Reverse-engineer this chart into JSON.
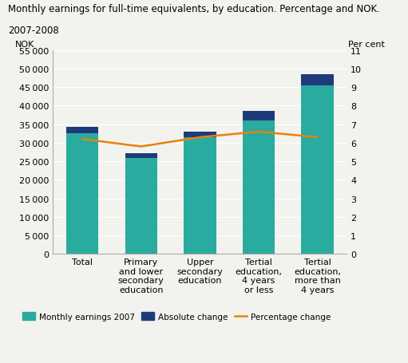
{
  "title_line1": "Monthly earnings for full-time equivalents, by education. Percentage and NOK.",
  "title_line2": "2007-2008",
  "categories": [
    "Total",
    "Primary\nand lower\nsecondary\neducation",
    "Upper\nsecondary\neducation",
    "Tertial\neducation,\n4 years\nor less",
    "Tertial\neducation,\nmore than\n4 years"
  ],
  "earnings_2007": [
    32500,
    25800,
    31500,
    36000,
    45500
  ],
  "absolute_change": [
    1700,
    1300,
    1500,
    2500,
    3000
  ],
  "percentage_change": [
    6.2,
    5.8,
    6.3,
    6.6,
    6.3
  ],
  "bar_color_teal": "#2aaba0",
  "bar_color_blue": "#1f3a7a",
  "line_color": "#e8820a",
  "ylabel_left": "NOK",
  "ylabel_right": "Per cent",
  "ylim_left": [
    0,
    55000
  ],
  "ylim_right": [
    0,
    11
  ],
  "yticks_left": [
    0,
    5000,
    10000,
    15000,
    20000,
    25000,
    30000,
    35000,
    40000,
    45000,
    50000,
    55000
  ],
  "yticks_right": [
    0,
    1,
    2,
    3,
    4,
    5,
    6,
    7,
    8,
    9,
    10,
    11
  ],
  "legend_earnings": "Monthly earnings 2007",
  "legend_absolute": "Absolute change",
  "legend_percentage": "Percentage change",
  "background_color": "#f2f2ee",
  "title_fontsize": 8.5,
  "axis_fontsize": 8,
  "tick_fontsize": 8
}
